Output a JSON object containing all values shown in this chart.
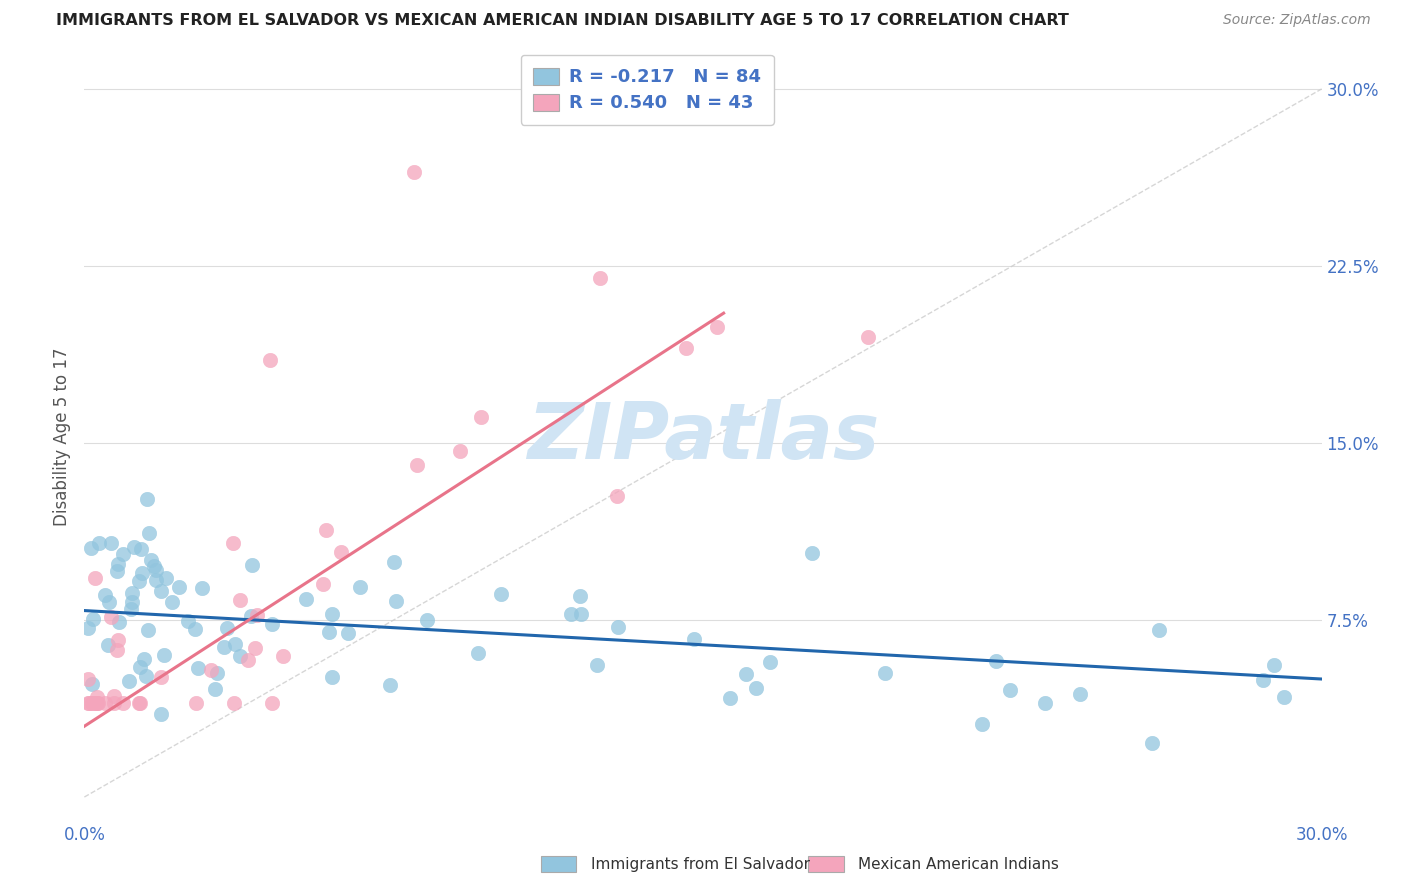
{
  "title": "IMMIGRANTS FROM EL SALVADOR VS MEXICAN AMERICAN INDIAN DISABILITY AGE 5 TO 17 CORRELATION CHART",
  "source": "Source: ZipAtlas.com",
  "ylabel": "Disability Age 5 to 17",
  "color_blue": "#92c5de",
  "color_pink": "#f4a5bc",
  "color_blue_line": "#2166ac",
  "color_pink_line": "#e8748a",
  "color_diag": "#cccccc",
  "watermark_color": "#d0e4f4",
  "xlim": [
    0.0,
    0.3
  ],
  "ylim": [
    -0.01,
    0.315
  ],
  "ytick_vals": [
    0.075,
    0.15,
    0.225,
    0.3
  ],
  "ytick_labels": [
    "7.5%",
    "15.0%",
    "22.5%",
    "30.0%"
  ],
  "blue_line_x0": 0.0,
  "blue_line_y0": 0.079,
  "blue_line_x1": 0.3,
  "blue_line_y1": 0.05,
  "pink_line_x0": 0.0,
  "pink_line_y0": 0.03,
  "pink_line_x1": 0.155,
  "pink_line_y1": 0.205,
  "legend_labels": [
    "R = -0.217   N = 84",
    "R = 0.540   N = 43"
  ],
  "xlabel_label_blue": "Immigrants from El Salvador",
  "xlabel_label_pink": "Mexican American Indians"
}
